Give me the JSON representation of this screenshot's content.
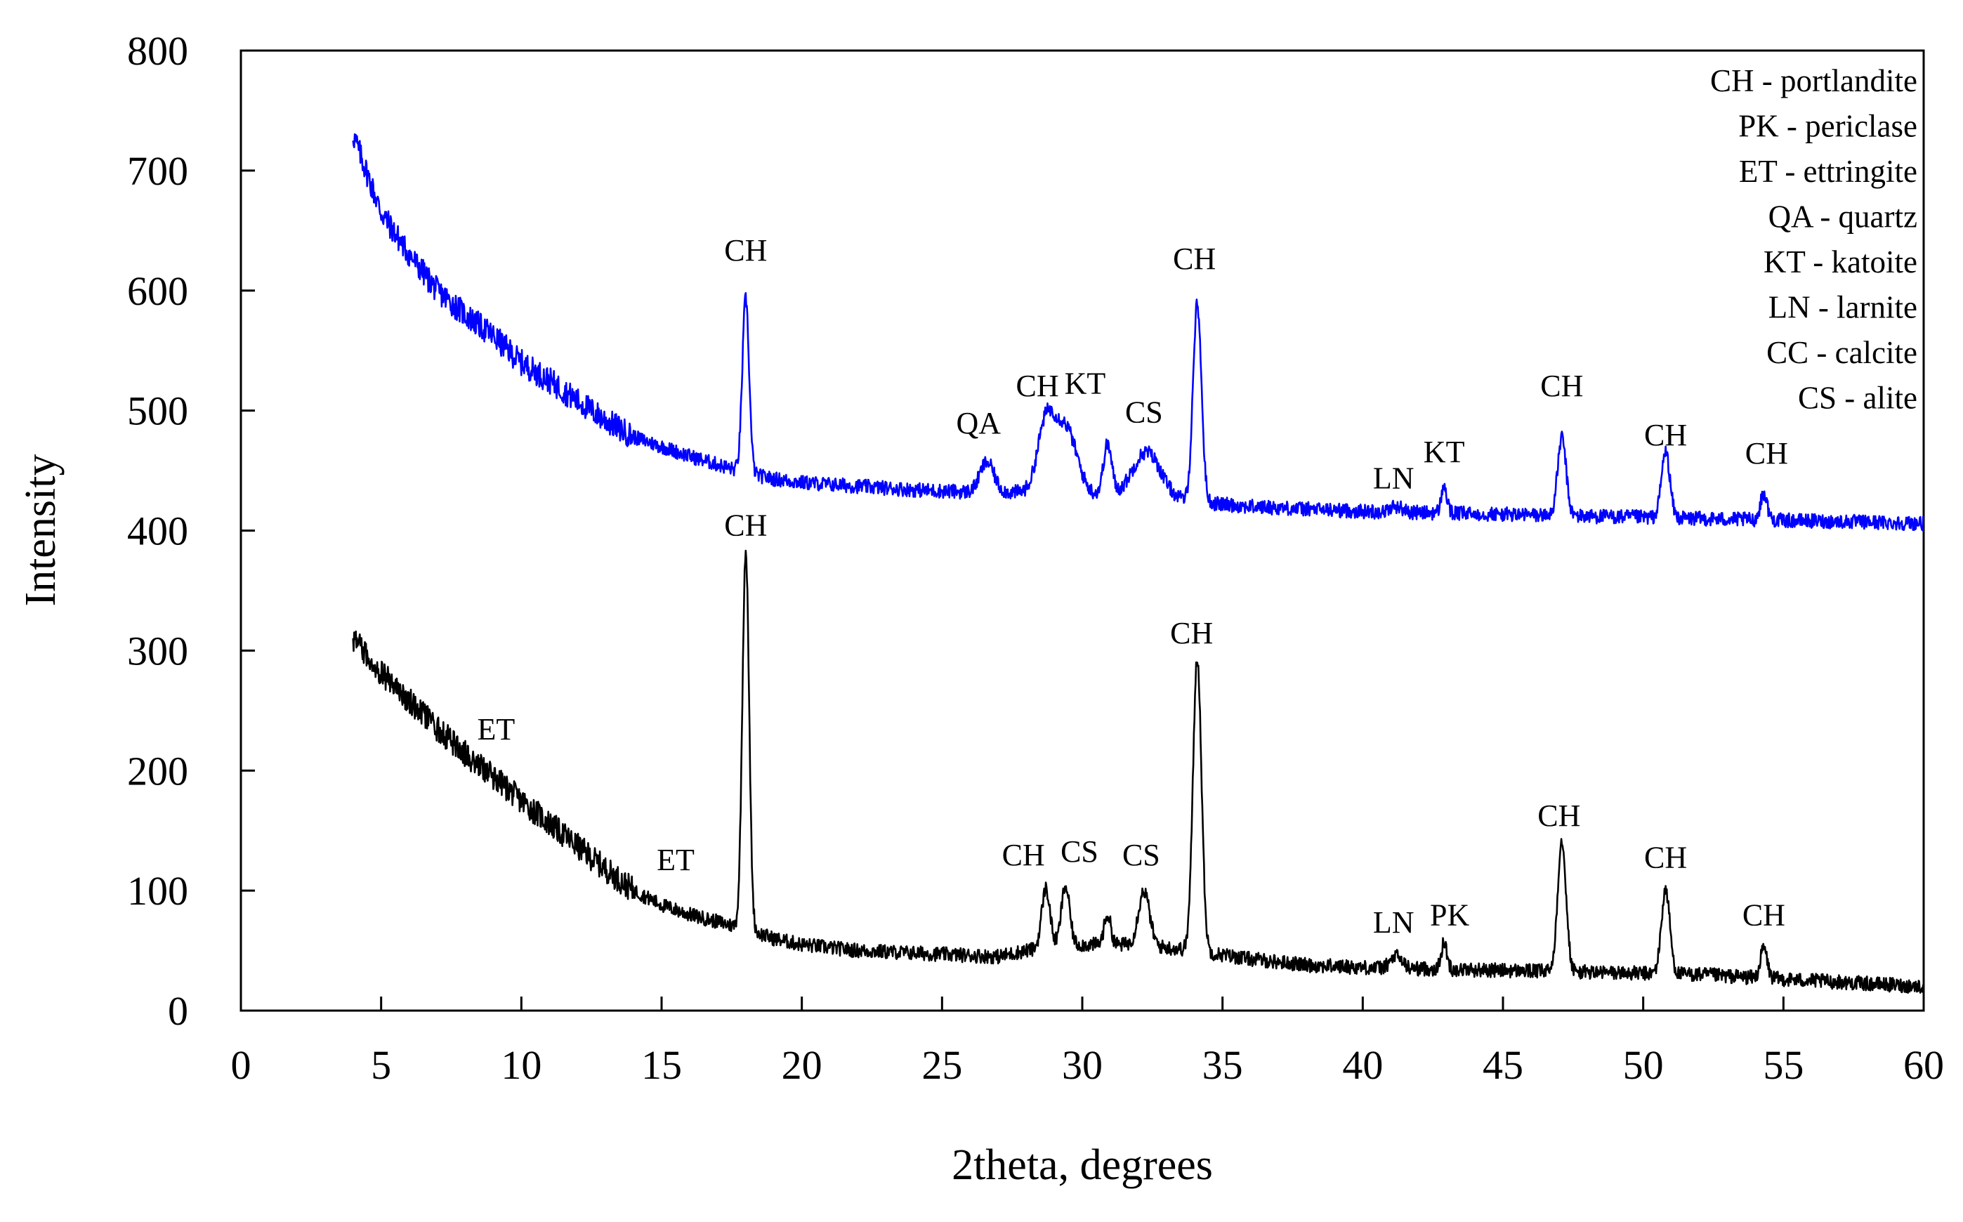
{
  "chart_data": {
    "type": "line",
    "title": "",
    "xlabel": "2theta, degrees",
    "ylabel": "Intensity",
    "xlim": [
      0,
      60
    ],
    "ylim": [
      0,
      800
    ],
    "xticks": [
      0,
      5,
      10,
      15,
      20,
      25,
      30,
      35,
      40,
      45,
      50,
      55,
      60
    ],
    "yticks": [
      0,
      100,
      200,
      300,
      400,
      500,
      600,
      700,
      800
    ],
    "grid": false,
    "legend_position": "top-right",
    "legend": [
      "CH - portlandite",
      "PK - periclase",
      "ET - ettringite",
      "QA - quartz",
      "KT - katoite",
      "LN - larnite",
      "CC - calcite",
      "CS - alite"
    ],
    "series": [
      {
        "color": "#0000ff",
        "baseline": [
          [
            4,
            730
          ],
          [
            5,
            665
          ],
          [
            6,
            630
          ],
          [
            7,
            600
          ],
          [
            8,
            580
          ],
          [
            9,
            562
          ],
          [
            10,
            540
          ],
          [
            11,
            525
          ],
          [
            12,
            508
          ],
          [
            13,
            492
          ],
          [
            14,
            478
          ],
          [
            15,
            470
          ],
          [
            16,
            462
          ],
          [
            17,
            455
          ],
          [
            18,
            448
          ],
          [
            19,
            443
          ],
          [
            20,
            440
          ],
          [
            22,
            437
          ],
          [
            24,
            434
          ],
          [
            26,
            432
          ],
          [
            27,
            432
          ],
          [
            28,
            432
          ],
          [
            30,
            430
          ],
          [
            32,
            428
          ],
          [
            34,
            424
          ],
          [
            36,
            420
          ],
          [
            38,
            418
          ],
          [
            40,
            416
          ],
          [
            44,
            414
          ],
          [
            48,
            412
          ],
          [
            52,
            410
          ],
          [
            56,
            408
          ],
          [
            60,
            406
          ]
        ],
        "peaks": [
          [
            18.0,
            145,
            0.12
          ],
          [
            26.6,
            25,
            0.25
          ],
          [
            28.7,
            55,
            0.3
          ],
          [
            29.4,
            55,
            0.4
          ],
          [
            30.9,
            42,
            0.15
          ],
          [
            32.3,
            38,
            0.5
          ],
          [
            34.1,
            165,
            0.15
          ],
          [
            41.2,
            5,
            0.2
          ],
          [
            42.9,
            22,
            0.1
          ],
          [
            47.1,
            65,
            0.15
          ],
          [
            50.8,
            55,
            0.15
          ],
          [
            54.3,
            22,
            0.12
          ]
        ]
      },
      {
        "color": "#000000",
        "baseline": [
          [
            4,
            310
          ],
          [
            5,
            282
          ],
          [
            6,
            258
          ],
          [
            7,
            235
          ],
          [
            8,
            214
          ],
          [
            9,
            195
          ],
          [
            10,
            175
          ],
          [
            11,
            156
          ],
          [
            12,
            137
          ],
          [
            13,
            118
          ],
          [
            14,
            100
          ],
          [
            15,
            88
          ],
          [
            16,
            80
          ],
          [
            17,
            74
          ],
          [
            18,
            68
          ],
          [
            19,
            60
          ],
          [
            20,
            55
          ],
          [
            22,
            50
          ],
          [
            25,
            47
          ],
          [
            27,
            45
          ],
          [
            28,
            50
          ],
          [
            30,
            55
          ],
          [
            32,
            55
          ],
          [
            34,
            50
          ],
          [
            36,
            43
          ],
          [
            38,
            38
          ],
          [
            40,
            36
          ],
          [
            44,
            34
          ],
          [
            48,
            32
          ],
          [
            52,
            30
          ],
          [
            56,
            25
          ],
          [
            60,
            20
          ]
        ],
        "peaks": [
          [
            18.0,
            315,
            0.12
          ],
          [
            28.7,
            50,
            0.15
          ],
          [
            29.4,
            50,
            0.15
          ],
          [
            30.9,
            25,
            0.12
          ],
          [
            32.2,
            45,
            0.2
          ],
          [
            34.1,
            245,
            0.15
          ],
          [
            41.2,
            10,
            0.2
          ],
          [
            42.9,
            22,
            0.1
          ],
          [
            47.1,
            110,
            0.15
          ],
          [
            50.8,
            70,
            0.15
          ],
          [
            54.3,
            25,
            0.12
          ]
        ]
      }
    ],
    "annotations": [
      {
        "text": "CH",
        "x": 18.0,
        "y": 625
      },
      {
        "text": "QA",
        "x": 26.3,
        "y": 481
      },
      {
        "text": "CH",
        "x": 28.4,
        "y": 512
      },
      {
        "text": "KT",
        "x": 30.1,
        "y": 514
      },
      {
        "text": "CS",
        "x": 32.2,
        "y": 490
      },
      {
        "text": "CH",
        "x": 34.0,
        "y": 618
      },
      {
        "text": "LN",
        "x": 41.1,
        "y": 435
      },
      {
        "text": "KT",
        "x": 42.9,
        "y": 457
      },
      {
        "text": "CH",
        "x": 47.1,
        "y": 512
      },
      {
        "text": "CH",
        "x": 50.8,
        "y": 471
      },
      {
        "text": "CH",
        "x": 54.4,
        "y": 456
      },
      {
        "text": "CH",
        "x": 18.0,
        "y": 396
      },
      {
        "text": "ET",
        "x": 9.1,
        "y": 226
      },
      {
        "text": "ET",
        "x": 15.5,
        "y": 117
      },
      {
        "text": "CH",
        "x": 33.9,
        "y": 306
      },
      {
        "text": "CH",
        "x": 27.9,
        "y": 121
      },
      {
        "text": "CS",
        "x": 29.9,
        "y": 124
      },
      {
        "text": "CS",
        "x": 32.1,
        "y": 121
      },
      {
        "text": "CH",
        "x": 47.0,
        "y": 154
      },
      {
        "text": "LN",
        "x": 41.1,
        "y": 65
      },
      {
        "text": "PK",
        "x": 43.1,
        "y": 71
      },
      {
        "text": "CH",
        "x": 50.8,
        "y": 119
      },
      {
        "text": "CH",
        "x": 54.3,
        "y": 71
      }
    ]
  }
}
